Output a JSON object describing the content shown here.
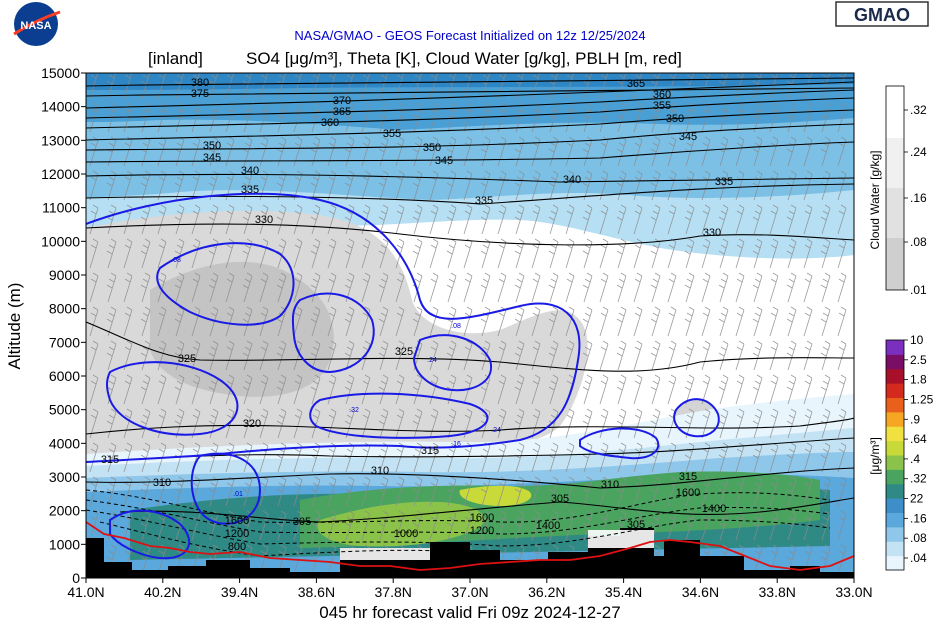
{
  "header": {
    "suptitle": "NASA/GMAO - GEOS Forecast Initialized on 12z 12/25/2024",
    "title_region": "[inland]",
    "title_vars": "SO4 [μg/m³], Theta [K], Cloud Water [g/kg], PBLH [m, red]",
    "nasa_logo_text": "NASA",
    "gmao_logo_text": "GMAO",
    "footer": "045 hr forecast valid Fri 09z 2024-12-27"
  },
  "colors": {
    "theta": "#000000",
    "so4_contour": "#1a1ae6",
    "pblh": "#dd1111",
    "terrain": "#000000",
    "nasa_blue": "#0b3d91",
    "nasa_red": "#fc3d21"
  },
  "chart_data": {
    "type": "cross-section",
    "ylabel": "Altitude (m)",
    "ylim": [
      0,
      15000
    ],
    "y_ticks": [
      "0",
      "1000",
      "2000",
      "3000",
      "4000",
      "5000",
      "6000",
      "7000",
      "8000",
      "9000",
      "10000",
      "11000",
      "12000",
      "13000",
      "14000",
      "15000"
    ],
    "x_ticks": [
      "41.0N",
      "40.2N",
      "39.4N",
      "38.6N",
      "37.8N",
      "37.0N",
      "36.2N",
      "35.4N",
      "34.6N",
      "33.8N",
      "33.0N"
    ],
    "cloud_colorbar": {
      "label": "Cloud Water [g/kg]",
      "levels": [
        ".01",
        ".08",
        ".16",
        ".24",
        ".32"
      ]
    },
    "so4_colorbar": {
      "label": "[μg/m³]",
      "levels": [
        ".04",
        ".08",
        ".16",
        "22",
        ".32",
        ".4",
        ".64",
        ".9",
        "1.25",
        "1.8",
        "2.5",
        "10"
      ],
      "colors": [
        "#e8f5fc",
        "#c3e3f5",
        "#8fc7ea",
        "#5aa8dc",
        "#3d8ec9",
        "#2f8a86",
        "#4aa460",
        "#8bc34a",
        "#c8d93a",
        "#f0e040",
        "#f5a623",
        "#e8601c",
        "#d42a1e",
        "#a8102a",
        "#7a0d66",
        "#7b2fbf"
      ]
    },
    "theta_contours": [
      {
        "level": "380",
        "label_at": [
          [
            200,
            85
          ]
        ]
      },
      {
        "level": "375",
        "label_at": [
          [
            200,
            96
          ]
        ]
      },
      {
        "level": "370",
        "label_at": [
          [
            342,
            103
          ]
        ]
      },
      {
        "level": "365",
        "label_at": [
          [
            342,
            114
          ],
          [
            636,
            86
          ]
        ]
      },
      {
        "level": "360",
        "label_at": [
          [
            330,
            125
          ],
          [
            662,
            97
          ]
        ]
      },
      {
        "level": "355",
        "label_at": [
          [
            392,
            136
          ],
          [
            662,
            108
          ]
        ]
      },
      {
        "level": "350",
        "label_at": [
          [
            212,
            148
          ],
          [
            432,
            150
          ],
          [
            675,
            121
          ]
        ]
      },
      {
        "level": "345",
        "label_at": [
          [
            212,
            160
          ],
          [
            444,
            163
          ],
          [
            688,
            139
          ]
        ]
      },
      {
        "level": "340",
        "label_at": [
          [
            250,
            173
          ],
          [
            572,
            182
          ]
        ]
      },
      {
        "level": "335",
        "label_at": [
          [
            250,
            192
          ],
          [
            484,
            203
          ],
          [
            724,
            184
          ]
        ]
      },
      {
        "level": "330",
        "label_at": [
          [
            264,
            222
          ],
          [
            712,
            235
          ]
        ]
      },
      {
        "level": "325",
        "label_at": [
          [
            187,
            361
          ],
          [
            404,
            354
          ]
        ]
      },
      {
        "level": "320",
        "label_at": [
          [
            252,
            426
          ]
        ]
      },
      {
        "level": "315",
        "label_at": [
          [
            110,
            462
          ],
          [
            430,
            453
          ],
          [
            688,
            479
          ]
        ]
      },
      {
        "level": "310",
        "label_at": [
          [
            162,
            485
          ],
          [
            380,
            473
          ],
          [
            610,
            487
          ]
        ]
      },
      {
        "level": "305",
        "label_at": [
          [
            302,
            524
          ],
          [
            560,
            501
          ],
          [
            636,
            527
          ]
        ]
      }
    ],
    "pblh_dashed_labels": [
      {
        "level": "1600",
        "label_at": [
          [
            237,
            524
          ],
          [
            482,
            521
          ],
          [
            688,
            496
          ]
        ]
      },
      {
        "level": "1400",
        "label_at": [
          [
            548,
            529
          ],
          [
            714,
            512
          ]
        ]
      },
      {
        "level": "1200",
        "label_at": [
          [
            237,
            537
          ],
          [
            482,
            534
          ]
        ]
      },
      {
        "level": "1000",
        "label_at": [
          [
            406,
            537
          ]
        ]
      },
      {
        "level": "800",
        "label_at": [
          [
            237,
            550
          ]
        ]
      }
    ],
    "so4_contour_labels": [
      ".08",
      ".08",
      ".24",
      ".32",
      ".24",
      ".16",
      ".01"
    ]
  }
}
